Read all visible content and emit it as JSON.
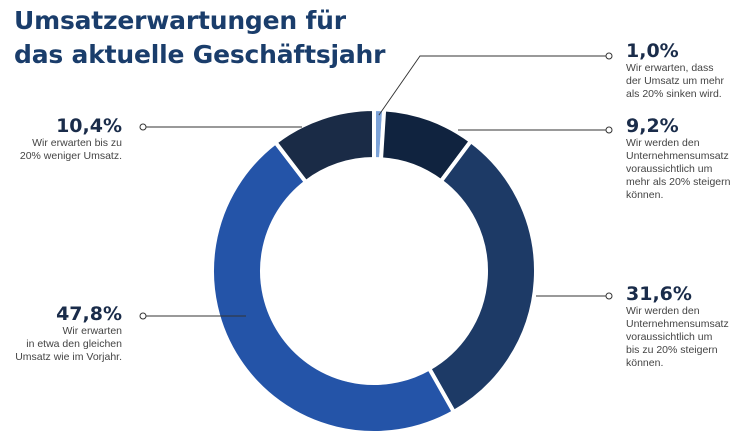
{
  "title": [
    "Umsatzerwartungen für",
    "das aktuelle Geschäftsjahr"
  ],
  "chart_data": {
    "type": "pie",
    "variant": "donut",
    "start": "top, clockwise",
    "slices": [
      {
        "value": 1.0,
        "label": "1,0%",
        "description": "Wir erwarten, dass\nder Umsatz um mehr\nals 20% sinken wird.",
        "color": "#7da3d8"
      },
      {
        "value": 9.2,
        "label": "9,2%",
        "description": "Wir werden den\nUnternehmensumsatz\nvoraussichtlich um\nmehr als 20% steigern\nkönnen.",
        "color": "#10233f"
      },
      {
        "value": 31.6,
        "label": "31,6%",
        "description": "Wir werden den\nUnternehmensumsatz\nvoraussichtlich um\nbis zu 20% steigern\nkönnen.",
        "color": "#1d3a66"
      },
      {
        "value": 47.8,
        "label": "47,8%",
        "description": "Wir erwarten\nin etwa den gleichen\nUmsatz wie im Vorjahr.",
        "color": "#2454a8"
      },
      {
        "value": 10.4,
        "label": "10,4%",
        "description": "Wir erwarten bis zu\n20% weniger Umsatz.",
        "color": "#1a2b46"
      }
    ]
  }
}
